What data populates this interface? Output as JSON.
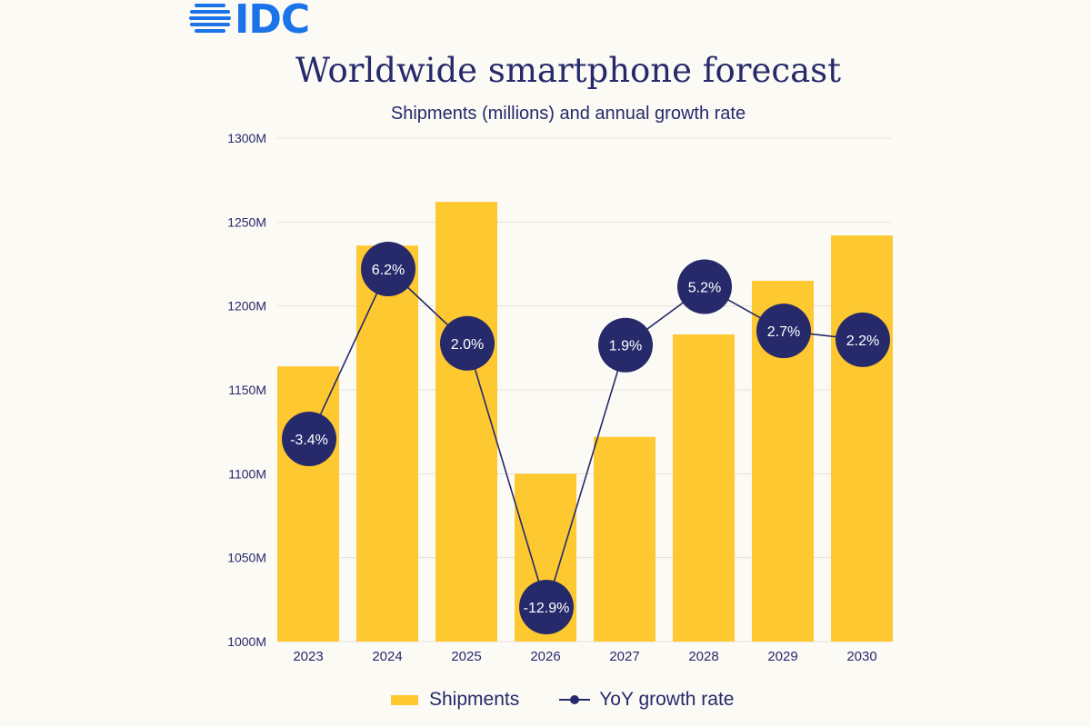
{
  "logo": {
    "text": "IDC"
  },
  "colors": {
    "bar": "#fec830",
    "line": "#262a6b",
    "background": "#fcfaf5",
    "grid": "#e6e2da",
    "logo": "#1a73e8"
  },
  "chart_data": {
    "type": "bar",
    "title": "Worldwide smartphone forecast",
    "subtitle": "Shipments (millions) and annual growth rate",
    "categories": [
      "2023",
      "2024",
      "2025",
      "2026",
      "2027",
      "2028",
      "2029",
      "2030"
    ],
    "series": [
      {
        "name": "Shipments",
        "type": "bar",
        "values": [
          1164,
          1236,
          1262,
          1100,
          1122,
          1183,
          1215,
          1242
        ]
      },
      {
        "name": "YoY growth rate",
        "type": "line",
        "values": [
          -3.4,
          6.2,
          2.0,
          -12.9,
          1.9,
          5.2,
          2.7,
          2.2
        ],
        "labels": [
          "-3.4%",
          "6.2%",
          "2.0%",
          "-12.9%",
          "1.9%",
          "5.2%",
          "2.7%",
          "2.2%"
        ]
      }
    ],
    "ylim": [
      1000,
      1300
    ],
    "yticks": [
      1000,
      1050,
      1100,
      1150,
      1200,
      1250,
      1300
    ],
    "ytick_labels": [
      "1000M",
      "1050M",
      "1100M",
      "1150M",
      "1200M",
      "1250M",
      "1300M"
    ],
    "xlabel": "",
    "ylabel": "",
    "grid": true,
    "legend": {
      "placement": "bottom",
      "entries": [
        "Shipments",
        "YoY growth rate"
      ]
    }
  }
}
